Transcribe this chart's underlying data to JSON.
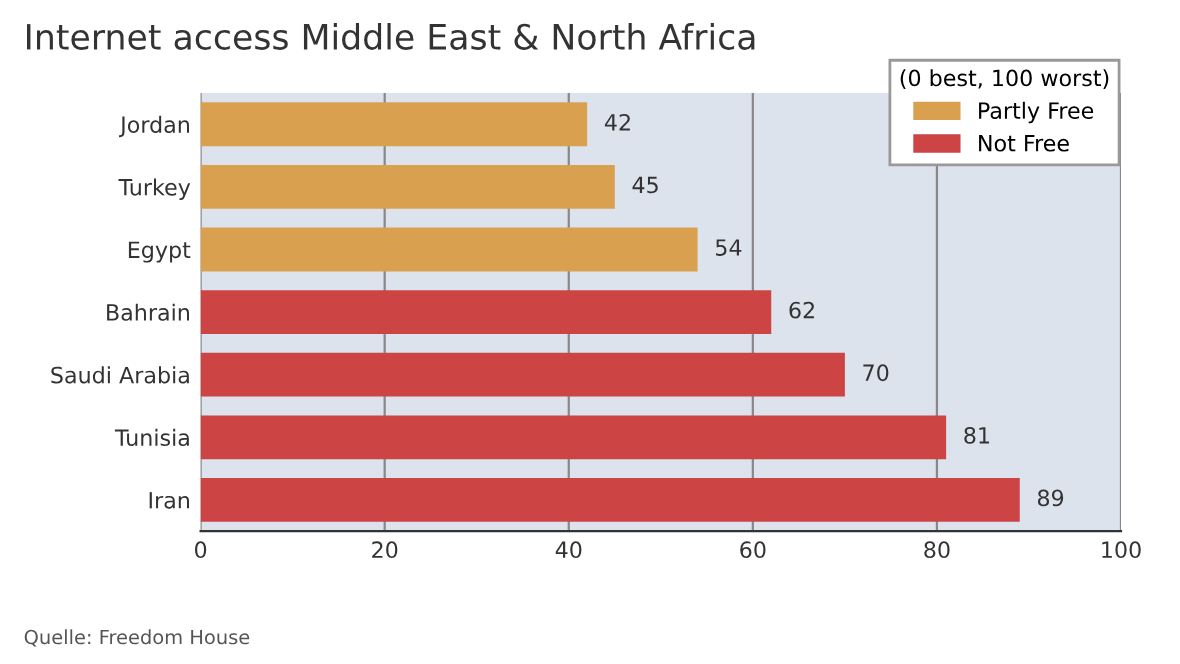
{
  "chart_data": {
    "type": "bar",
    "orientation": "horizontal",
    "title": "Internet access Middle East & North Africa",
    "categories": [
      "Jordan",
      "Turkey",
      "Egypt",
      "Bahrain",
      "Saudi Arabia",
      "Tunisia",
      "Iran"
    ],
    "series": [
      {
        "name": "Partly Free",
        "color": "#d9a050",
        "values": [
          42,
          45,
          54,
          null,
          null,
          null,
          null
        ]
      },
      {
        "name": "Not Free",
        "color": "#cc4444",
        "values": [
          null,
          null,
          null,
          62,
          70,
          81,
          89
        ]
      }
    ],
    "xlim": [
      0,
      100
    ],
    "xticks": [
      0,
      20,
      40,
      60,
      80,
      100
    ],
    "grid": "x",
    "legend": "top right",
    "legend_title": "(0 best, 100 worst)",
    "data_labels": true,
    "annotations": [
      "Quelle: Freedom House"
    ]
  }
}
